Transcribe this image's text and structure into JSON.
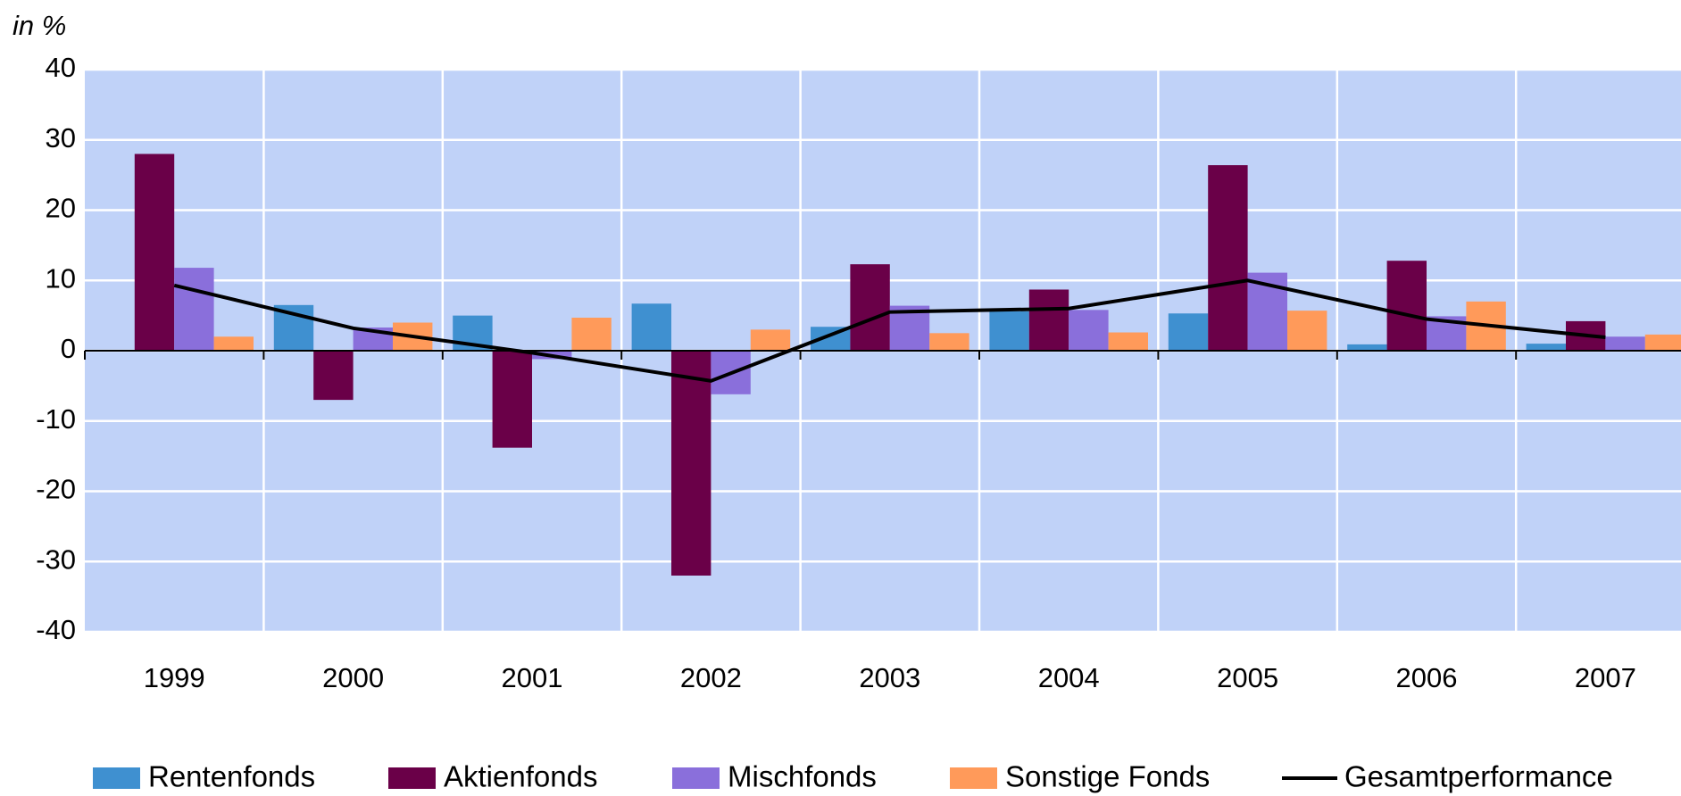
{
  "chart_data": {
    "type": "bar",
    "y_label": "in %",
    "categories": [
      "1999",
      "2000",
      "2001",
      "2002",
      "2003",
      "2004",
      "2005",
      "2006",
      "2007"
    ],
    "series": [
      {
        "name": "Rentenfonds",
        "color": "#3f90d0",
        "type": "bar",
        "values": [
          0.1,
          6.5,
          5,
          6.7,
          3.4,
          5.6,
          5.3,
          0.9,
          1
        ]
      },
      {
        "name": "Aktienfonds",
        "color": "#6a0048",
        "type": "bar",
        "values": [
          28,
          -7,
          -13.8,
          -32,
          12.3,
          8.7,
          26.4,
          12.8,
          4.2
        ]
      },
      {
        "name": "Mischfonds",
        "color": "#8a6fdb",
        "type": "bar",
        "values": [
          11.8,
          3.3,
          -1.2,
          -6.2,
          6.4,
          5.8,
          11.1,
          4.9,
          2
        ]
      },
      {
        "name": "Sonstige Fonds",
        "color": "#ff9a5a",
        "type": "bar",
        "values": [
          2,
          4,
          4.7,
          3,
          2.5,
          2.6,
          5.7,
          7,
          2.3
        ]
      },
      {
        "name": "Gesamtperformance",
        "color": "#000000",
        "type": "line",
        "values": [
          9.3,
          3.2,
          -0.3,
          -4.3,
          5.5,
          6,
          10,
          4.5,
          1.9
        ]
      }
    ],
    "ylim": [
      -40,
      40
    ],
    "yticks": [
      -40,
      -30,
      -20,
      -10,
      0,
      10,
      20,
      30,
      40
    ],
    "grid": true,
    "background": "#c0d2f8",
    "legend": "bottom"
  }
}
